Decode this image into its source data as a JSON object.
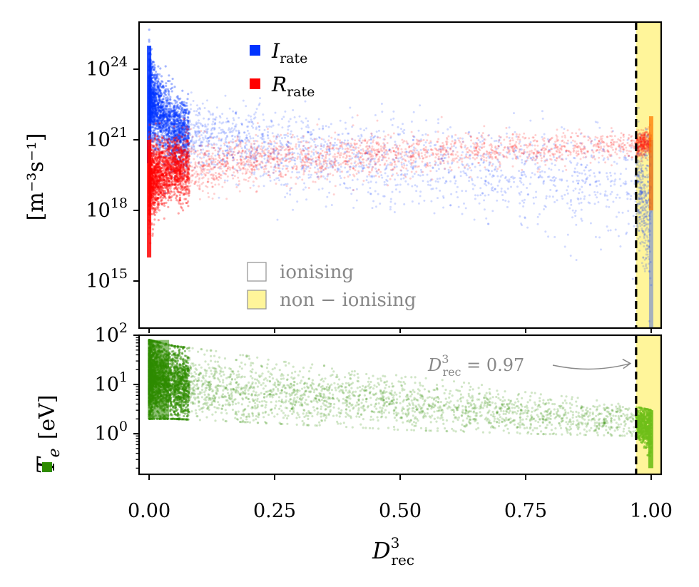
{
  "colors": {
    "ionisation": "#0033ff",
    "recombination": "#ff0000",
    "temperature": "#2e8b00",
    "non_ionising_fill": "#fff59a",
    "threshold_line": "#000000",
    "annotation": "#888888"
  },
  "chart_data": [
    {
      "type": "scatter",
      "panel": "top",
      "ylabel": "[m⁻³s⁻¹]",
      "yscale": "log",
      "ylim": [
        10000000000000.0,
        1e+26
      ],
      "xlim": [
        -0.02,
        1.02
      ],
      "ytick_values": [
        1000000000000000.0,
        1e+18,
        1e+21,
        1e+24
      ],
      "ytick_labels": [
        {
          "base": "10",
          "exp": "15"
        },
        {
          "base": "10",
          "exp": "18"
        },
        {
          "base": "10",
          "exp": "21"
        },
        {
          "base": "10",
          "exp": "24"
        }
      ],
      "series": [
        {
          "name": "I",
          "subscript": "rate",
          "color": "#0033ff",
          "trend": {
            "x": [
              0.0,
              0.05,
              0.25,
              0.5,
              0.75,
              0.97,
              1.0
            ],
            "y_median_exp": [
              22.8,
              21.4,
              20.6,
              20.0,
              19.5,
              19.0,
              18.0
            ],
            "y_spread_exp": [
              1.2,
              1.0,
              1.1,
              1.3,
              1.4,
              1.6,
              2.5
            ],
            "y_min_at_zero": 1e+20,
            "y_max_at_zero": 1e+25
          }
        },
        {
          "name": "R",
          "subscript": "rate",
          "color": "#ff0000",
          "trend": {
            "x": [
              0.0,
              0.05,
              0.25,
              0.5,
              0.75,
              0.97,
              1.0
            ],
            "y_median_exp": [
              19.2,
              19.8,
              20.2,
              20.4,
              20.6,
              20.8,
              20.9
            ],
            "y_spread_exp": [
              1.1,
              0.9,
              0.7,
              0.6,
              0.5,
              0.4,
              0.3
            ],
            "y_min_at_zero": 1e+16,
            "y_max_at_zero": 1e+21
          }
        }
      ],
      "regions": [
        {
          "label": "ionising",
          "x_from": -0.02,
          "x_to": 0.97,
          "fill": "#ffffff"
        },
        {
          "label": "non − ionising",
          "x_from": 0.97,
          "x_to": 1.02,
          "fill": "#fff59a"
        }
      ],
      "threshold_x": 0.97
    },
    {
      "type": "scatter",
      "panel": "bottom",
      "ylabel": "T",
      "ylabel_subscript": "e",
      "ylabel_unit": "[eV]",
      "yscale": "log",
      "ylim": [
        0.15,
        100
      ],
      "xlim": [
        -0.02,
        1.02
      ],
      "xlabel": "D",
      "xlabel_sup": "3",
      "xlabel_sub": "rec",
      "ytick_values": [
        1,
        10,
        100
      ],
      "ytick_labels": [
        {
          "base": "10",
          "exp": "0"
        },
        {
          "base": "10",
          "exp": "1"
        },
        {
          "base": "10",
          "exp": "2"
        }
      ],
      "xtick_values": [
        0.0,
        0.25,
        0.5,
        0.75,
        1.0
      ],
      "xtick_labels": [
        "0.00",
        "0.25",
        "0.50",
        "0.75",
        "1.00"
      ],
      "series": [
        {
          "name": "T",
          "subscript": "e",
          "color": "#2e8b00",
          "trend": {
            "x": [
              0.0,
              0.05,
              0.25,
              0.5,
              0.75,
              0.97,
              1.0
            ],
            "y_median": [
              15,
              10,
              6,
              4,
              2.5,
              1.7,
              1.2
            ],
            "y_low": [
              2,
              2,
              1.6,
              1.2,
              1.0,
              0.9,
              0.2
            ],
            "y_high": [
              80,
              60,
              30,
              15,
              7,
              3.5,
              3.0
            ]
          }
        }
      ],
      "annotation": {
        "text_prefix": "D",
        "sup": "3",
        "sub": "rec",
        "text_value": " = 0.97",
        "target_x": 0.97,
        "target_y": 25
      },
      "threshold_x": 0.97
    }
  ]
}
